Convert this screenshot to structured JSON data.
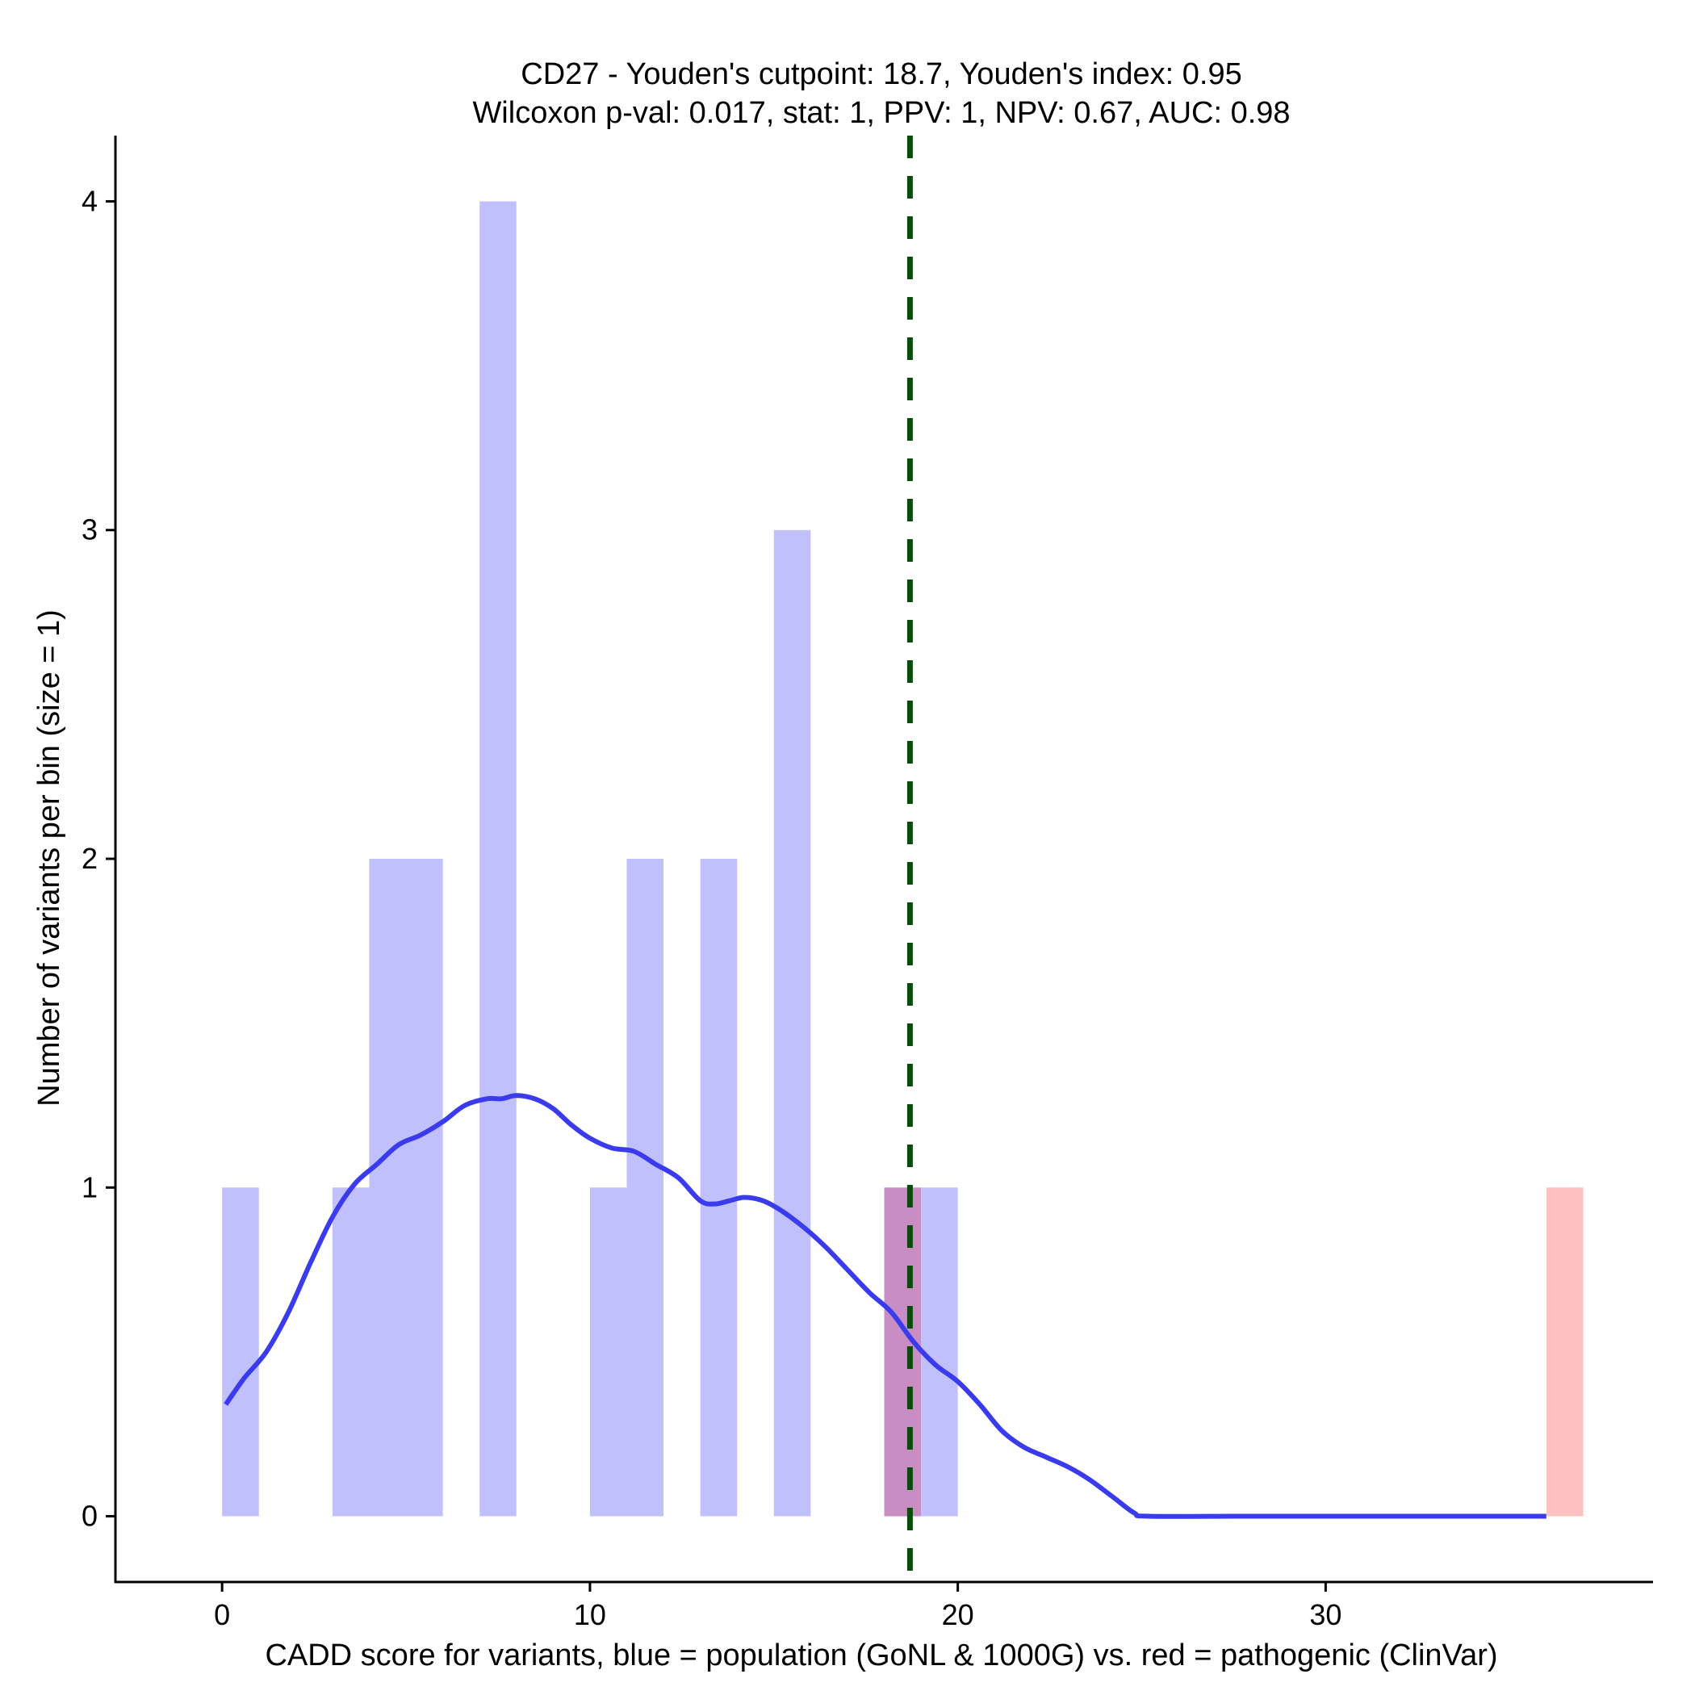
{
  "chart_data": {
    "type": "histogram",
    "title": "CD27 - Youden's cutpoint: 18.7, Youden's index: 0.95",
    "subtitle": "Wilcoxon p-val: 0.017, stat: 1, PPV: 1, NPV: 0.67, AUC: 0.98",
    "xlabel": "CADD score for variants, blue = population (GoNL & 1000G) vs. red = pathogenic (ClinVar)",
    "ylabel": "Number of variants per bin (size = 1)",
    "xlim": [
      -2.9,
      38.9
    ],
    "ylim": [
      -0.2,
      4.2
    ],
    "x_ticks": [
      0,
      10,
      20,
      30
    ],
    "y_ticks": [
      0,
      1,
      2,
      3,
      4
    ],
    "bin_size": 1,
    "cutpoint": 18.7,
    "colors": {
      "population_bar": "#c0c0fc",
      "pathogenic_bar": "#fec0c0",
      "overlap_bar": "#c88ec4",
      "density_line": "#3b3bee",
      "cutpoint_line": "#0a4a0a"
    },
    "series": [
      {
        "name": "population (GoNL & 1000G)",
        "bins": [
          {
            "start": 0,
            "count": 1
          },
          {
            "start": 3,
            "count": 1
          },
          {
            "start": 4,
            "count": 2
          },
          {
            "start": 5,
            "count": 2
          },
          {
            "start": 7,
            "count": 4
          },
          {
            "start": 10,
            "count": 1
          },
          {
            "start": 11,
            "count": 2
          },
          {
            "start": 13,
            "count": 2
          },
          {
            "start": 15,
            "count": 3
          },
          {
            "start": 18,
            "count": 1
          },
          {
            "start": 19,
            "count": 1
          }
        ]
      },
      {
        "name": "pathogenic (ClinVar)",
        "bins": [
          {
            "start": 18,
            "count": 1
          },
          {
            "start": 36,
            "count": 1
          }
        ]
      }
    ],
    "density": {
      "x": [
        0.1,
        0.6,
        1.2,
        1.8,
        2.4,
        3.0,
        3.6,
        4.2,
        4.8,
        5.4,
        6.0,
        6.6,
        7.2,
        7.6,
        8.0,
        8.5,
        9.0,
        9.5,
        10.0,
        10.6,
        11.2,
        11.8,
        12.4,
        13.0,
        13.4,
        13.8,
        14.2,
        14.7,
        15.2,
        15.8,
        16.4,
        17.0,
        17.6,
        18.2,
        18.8,
        19.4,
        20.0,
        20.6,
        21.2,
        21.8,
        22.4,
        23.0,
        23.6,
        24.2,
        24.8,
        25.2,
        28.0,
        32.0,
        36.0
      ],
      "y": [
        0.34,
        0.42,
        0.5,
        0.62,
        0.77,
        0.91,
        1.01,
        1.07,
        1.13,
        1.16,
        1.2,
        1.25,
        1.27,
        1.27,
        1.28,
        1.27,
        1.24,
        1.19,
        1.15,
        1.12,
        1.11,
        1.07,
        1.03,
        0.96,
        0.95,
        0.96,
        0.97,
        0.96,
        0.93,
        0.88,
        0.82,
        0.75,
        0.68,
        0.62,
        0.53,
        0.46,
        0.41,
        0.34,
        0.26,
        0.21,
        0.18,
        0.15,
        0.11,
        0.06,
        0.01,
        0.0,
        0.0,
        0.0,
        0.0
      ]
    }
  }
}
